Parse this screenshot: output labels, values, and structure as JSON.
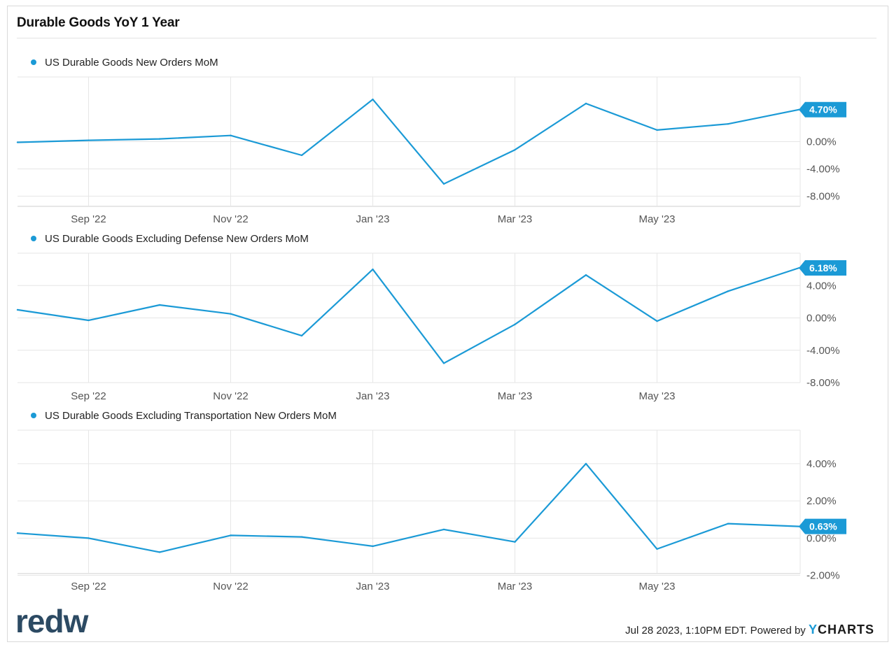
{
  "header": {
    "title": "Durable Goods YoY 1 Year"
  },
  "footer": {
    "timestamp": "Jul 28 2023, 1:10PM EDT.",
    "powered_by": "Powered by",
    "ycharts_y": "Y",
    "ycharts_rest": "CHARTS",
    "brand": "redw"
  },
  "colors": {
    "series": "#1b9ad6",
    "grid": "#e6e6e6",
    "axis": "#cccccc"
  },
  "chart_data": [
    {
      "type": "line",
      "legend": "US Durable Goods New Orders MoM",
      "x": [
        "2022-07",
        "2022-08",
        "2022-09",
        "2022-10",
        "2022-11",
        "2022-12",
        "2023-01",
        "2023-02",
        "2023-03",
        "2023-04",
        "2023-05",
        "2023-06"
      ],
      "values": [
        -0.1,
        0.2,
        0.4,
        0.9,
        -2.0,
        6.2,
        -6.2,
        -1.2,
        5.6,
        1.7,
        2.6,
        4.7
      ],
      "last_value_label": "4.70%",
      "x_ticks": [
        "Sep '22",
        "Nov '22",
        "Jan '23",
        "Mar '23",
        "May '23"
      ],
      "y_ticks": [
        "0.00%",
        "-4.00%",
        "-8.00%"
      ],
      "ylim": [
        -9.5,
        9.5
      ]
    },
    {
      "type": "line",
      "legend": "US Durable Goods Excluding Defense New Orders MoM",
      "x": [
        "2022-07",
        "2022-08",
        "2022-09",
        "2022-10",
        "2022-11",
        "2022-12",
        "2023-01",
        "2023-02",
        "2023-03",
        "2023-04",
        "2023-05",
        "2023-06"
      ],
      "values": [
        1.0,
        -0.3,
        1.6,
        0.5,
        -2.2,
        6.0,
        -5.6,
        -0.8,
        5.3,
        -0.4,
        3.3,
        6.18
      ],
      "last_value_label": "6.18%",
      "x_ticks": [
        "Sep '22",
        "Nov '22",
        "Jan '23",
        "Mar '23",
        "May '23"
      ],
      "y_ticks": [
        "4.00%",
        "0.00%",
        "-4.00%",
        "-8.00%"
      ],
      "ylim": [
        -8.0,
        8.0
      ]
    },
    {
      "type": "line",
      "legend": "US Durable Goods Excluding Transportation New Orders MoM",
      "x": [
        "2022-07",
        "2022-08",
        "2022-09",
        "2022-10",
        "2022-11",
        "2022-12",
        "2023-01",
        "2023-02",
        "2023-03",
        "2023-04",
        "2023-05",
        "2023-06"
      ],
      "values": [
        0.27,
        0.0,
        -0.75,
        0.15,
        0.07,
        -0.43,
        0.47,
        -0.2,
        4.0,
        -0.58,
        0.78,
        0.63
      ],
      "last_value_label": "0.63%",
      "x_ticks": [
        "Sep '22",
        "Nov '22",
        "Jan '23",
        "Mar '23",
        "May '23"
      ],
      "y_ticks": [
        "4.00%",
        "2.00%",
        "0.00%",
        "-2.00%"
      ],
      "ylim": [
        -1.9,
        5.8
      ]
    }
  ]
}
